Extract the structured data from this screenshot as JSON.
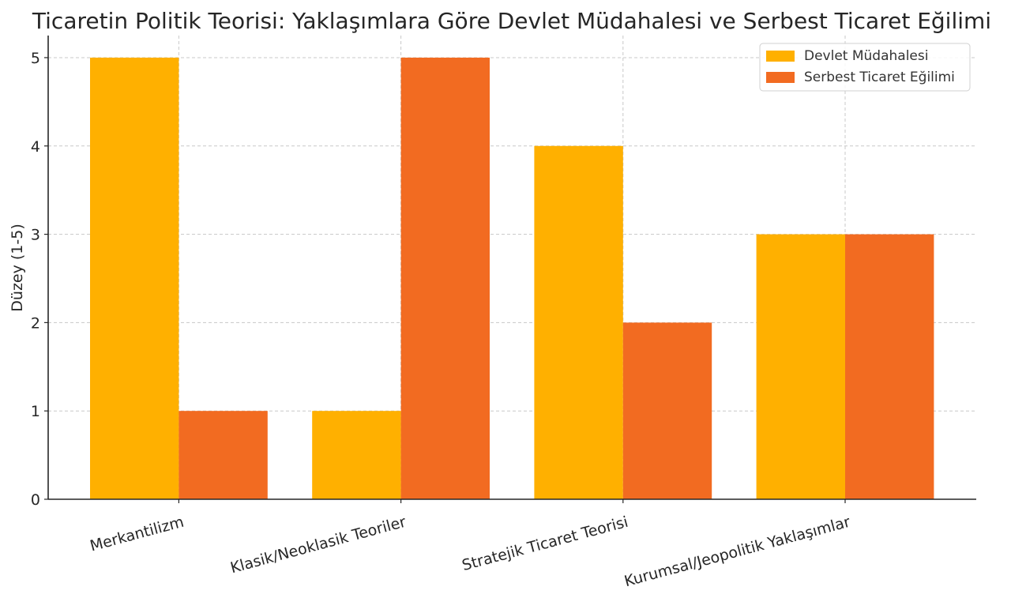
{
  "chart_data": {
    "type": "bar",
    "title": "Ticaretin Politik Teorisi: Yaklaşımlara Göre Devlet Müdahalesi ve Serbest Ticaret Eğilimi",
    "xlabel": "",
    "ylabel": "Düzey (1-5)",
    "categories": [
      "Merkantilizm",
      "Klasik/Neoklasik Teoriler",
      "Stratejik Ticaret Teorisi",
      "Kurumsal/Jeopolitik Yaklaşımlar"
    ],
    "series": [
      {
        "name": "Devlet Müdahalesi",
        "values": [
          5,
          1,
          4,
          3
        ],
        "color": "#FFB000"
      },
      {
        "name": "Serbest Ticaret Eğilimi",
        "values": [
          1,
          5,
          2,
          3
        ],
        "color": "#F26B21"
      }
    ],
    "ylim": [
      0,
      5.25
    ],
    "yticks": [
      0,
      1,
      2,
      3,
      4,
      5
    ],
    "grid": true,
    "legend_position": "top-right",
    "x_tick_rotation": 15
  }
}
